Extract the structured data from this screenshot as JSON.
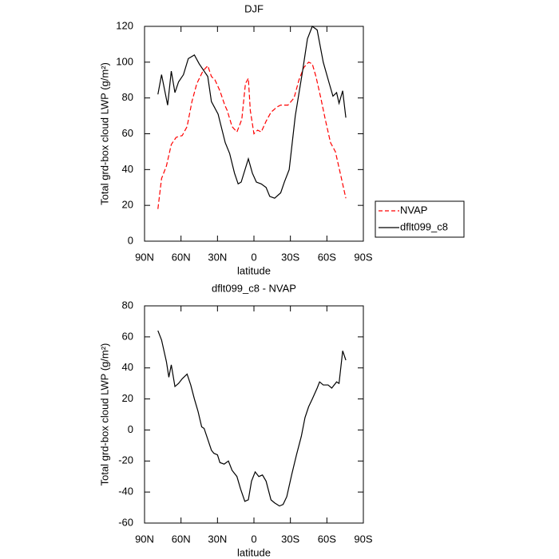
{
  "chart_data": [
    {
      "type": "line",
      "title": "DJF",
      "xlabel": "latitude",
      "ylabel": "Total grd-box cloud LWP (g/m²)",
      "xlim": [
        90,
        -90
      ],
      "xticks": [
        {
          "value": 90,
          "label": "90N"
        },
        {
          "value": 60,
          "label": "60N"
        },
        {
          "value": 30,
          "label": "30N"
        },
        0,
        {
          "value": -30,
          "label": "30S"
        },
        {
          "value": -60,
          "label": "60S"
        },
        {
          "value": -90,
          "label": "90S"
        }
      ],
      "ylim": [
        0,
        120
      ],
      "yticks": [
        0,
        20,
        40,
        60,
        80,
        100,
        120
      ],
      "legend": "right",
      "series": [
        {
          "name": "NVAP",
          "color": "#ff0000",
          "dashed": true,
          "x": [
            79,
            76,
            72,
            68,
            64,
            59,
            55,
            51,
            47,
            42,
            38,
            35,
            32,
            28,
            24,
            22,
            18,
            14,
            10,
            7,
            4.6,
            3,
            0,
            -3,
            -6,
            -10,
            -14,
            -19,
            -22,
            -28,
            -33,
            -37,
            -41,
            -45,
            -48,
            -51,
            -55,
            -59,
            -63,
            -67,
            -71,
            -75.6
          ],
          "values": [
            18,
            35,
            42,
            54,
            58,
            59,
            64,
            78,
            88,
            95,
            98,
            92,
            90,
            84,
            76,
            73,
            64,
            61,
            68,
            88,
            91,
            73,
            60,
            62,
            61,
            67,
            72,
            75,
            76,
            76,
            80,
            90,
            97,
            100,
            99,
            92,
            80,
            67,
            55,
            50,
            38,
            24
          ]
        },
        {
          "name": "dflt099_c8",
          "color": "#000000",
          "dashed": false,
          "x": [
            79,
            76,
            71,
            68,
            65,
            62,
            58,
            54,
            49,
            45,
            41,
            38,
            35,
            29.5,
            23.6,
            20,
            16,
            13,
            10.5,
            4.6,
            1.3,
            -2,
            -6,
            -10,
            -13,
            -17,
            -22,
            -25,
            -29,
            -34,
            -40,
            -44,
            -48,
            -52,
            -57,
            -62,
            -65,
            -68,
            -70,
            -73,
            -75.6
          ],
          "values": [
            82,
            93,
            76,
            95,
            83,
            89,
            93,
            102,
            104,
            99,
            95,
            92,
            78,
            71,
            55,
            49,
            38,
            32,
            33,
            46,
            38,
            33,
            32,
            30,
            25,
            24,
            27,
            33,
            40,
            70,
            95,
            113,
            120,
            118,
            100,
            88,
            81,
            83,
            77,
            84,
            69
          ]
        }
      ]
    },
    {
      "type": "line",
      "title": "dflt099_c8 - NVAP",
      "xlabel": "latitude",
      "ylabel": "Total grd-box cloud LWP (g/m²)",
      "xlim": [
        90,
        -90
      ],
      "xticks": [
        {
          "value": 90,
          "label": "90N"
        },
        {
          "value": 60,
          "label": "60N"
        },
        {
          "value": 30,
          "label": "30N"
        },
        0,
        {
          "value": -30,
          "label": "30S"
        },
        {
          "value": -60,
          "label": "60S"
        },
        {
          "value": -90,
          "label": "90S"
        }
      ],
      "ylim": [
        -60,
        80
      ],
      "yticks": [
        -60,
        -40,
        -20,
        0,
        20,
        40,
        60,
        80
      ],
      "series": [
        {
          "color": "#000000",
          "dashed": false,
          "x": [
            79,
            76,
            72,
            70,
            68,
            65,
            62,
            59,
            55,
            52,
            49,
            46,
            43,
            41,
            38,
            35,
            33,
            30,
            28,
            24.5,
            21,
            18,
            14,
            11,
            7.5,
            4.6,
            2,
            -1,
            -4,
            -7,
            -10,
            -14,
            -17,
            -21,
            -24,
            -27,
            -31,
            -35,
            -39,
            -42,
            -45,
            -48,
            -52,
            -54,
            -57,
            -61,
            -64,
            -68,
            -70,
            -73,
            -75.6
          ],
          "values": [
            64,
            58,
            44,
            34,
            42,
            28,
            30,
            33,
            36,
            29,
            20,
            12,
            2,
            1,
            -6,
            -13,
            -15,
            -16,
            -21,
            -22,
            -20,
            -26,
            -30,
            -38,
            -46,
            -45,
            -33,
            -27,
            -30,
            -29,
            -33,
            -45,
            -47,
            -49,
            -48,
            -43,
            -29,
            -16,
            -4,
            8,
            15,
            20,
            27,
            31,
            29,
            29,
            27,
            31,
            30,
            51,
            45
          ]
        }
      ]
    }
  ]
}
